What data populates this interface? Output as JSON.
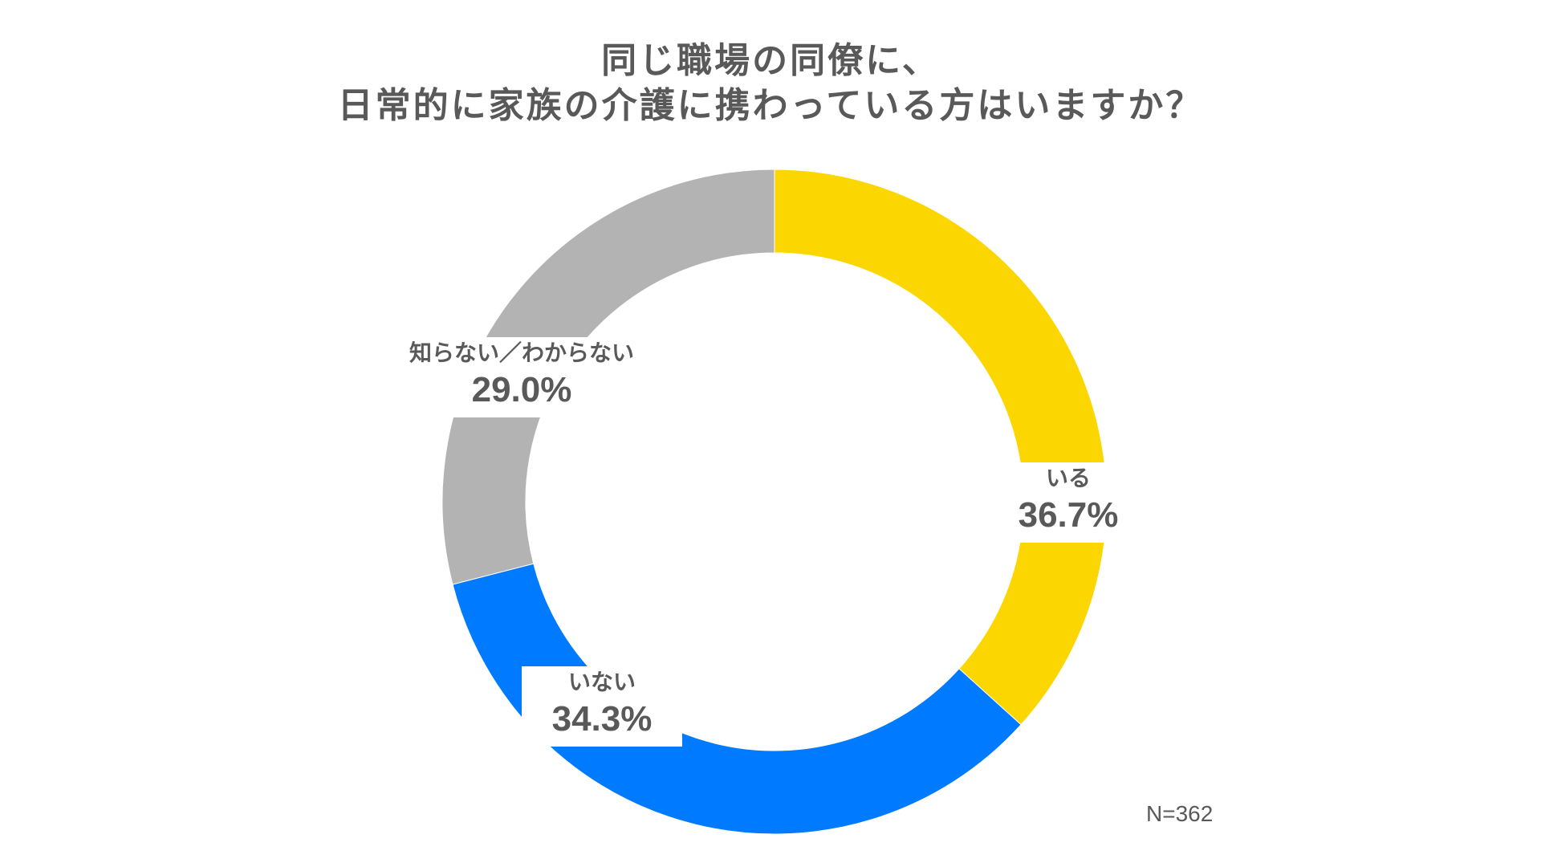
{
  "chart_data": {
    "type": "pie",
    "variant": "donut",
    "title": [
      "同じ職場の同僚に、",
      "日常的に家族の介護に携わっている方はいますか？"
    ],
    "categories": [
      "いる",
      "いない",
      "知らない／わからない"
    ],
    "values": [
      36.7,
      34.3,
      29.0
    ],
    "value_labels": [
      "36.7%",
      "34.3%",
      "29.0%"
    ],
    "colors": [
      "#FCD600",
      "#007BFF",
      "#B3B3B3"
    ],
    "start": "12 o'clock, clockwise",
    "note": "N=362"
  }
}
